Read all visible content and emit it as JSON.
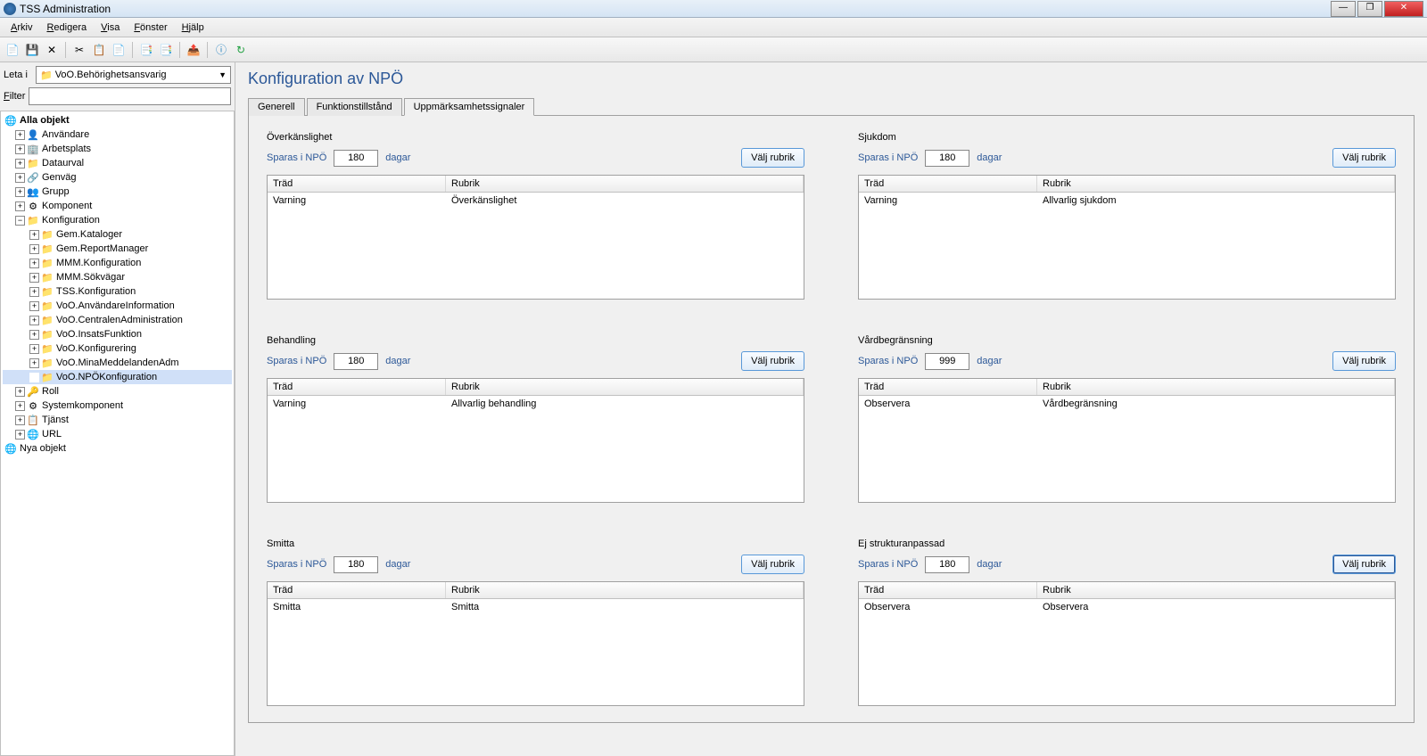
{
  "window": {
    "title": "TSS Administration"
  },
  "menu": {
    "arkiv": "Arkiv",
    "redigera": "Redigera",
    "visa": "Visa",
    "fonster": "Fönster",
    "hjalp": "Hjälp"
  },
  "search": {
    "leta_label": "Leta i",
    "combo_value": "VoO.Behörighetsansvarig",
    "filter_label": "Filter"
  },
  "tree": {
    "root": "Alla objekt",
    "items": [
      {
        "label": "Användare",
        "icon": "👤",
        "color": "#e07030"
      },
      {
        "label": "Arbetsplats",
        "icon": "🏢",
        "color": "#707090"
      },
      {
        "label": "Dataurval",
        "icon": "📁",
        "color": "#d0a040"
      },
      {
        "label": "Genväg",
        "icon": "🔗",
        "color": "#707090"
      },
      {
        "label": "Grupp",
        "icon": "👥",
        "color": "#d0a040"
      },
      {
        "label": "Komponent",
        "icon": "⚙",
        "color": "#707090"
      }
    ],
    "konfiguration": "Konfiguration",
    "konf_children": [
      "Gem.Kataloger",
      "Gem.ReportManager",
      "MMM.Konfiguration",
      "MMM.Sökvägar",
      "TSS.Konfiguration",
      "VoO.AnvändareInformation",
      "VoO.CentralenAdministration",
      "VoO.InsatsFunktion",
      "VoO.Konfigurering",
      "VoO.MinaMeddelandenAdm",
      "VoO.NPÖKonfiguration"
    ],
    "tail": [
      {
        "label": "Roll",
        "icon": "🔑"
      },
      {
        "label": "Systemkomponent",
        "icon": "⚙"
      },
      {
        "label": "Tjänst",
        "icon": "📋"
      },
      {
        "label": "URL",
        "icon": "🌐"
      }
    ],
    "nya": "Nya objekt"
  },
  "page": {
    "title": "Konfiguration av NPÖ"
  },
  "tabs": {
    "generell": "Generell",
    "funktion": "Funktionstillstånd",
    "uppmark": "Uppmärksamhetssignaler"
  },
  "common": {
    "sparas": "Sparas i NPÖ",
    "dagar": "dagar",
    "valj": "Välj rubrik",
    "trad": "Träd",
    "rubrik": "Rubrik"
  },
  "panels": [
    {
      "title": "Överkänslighet",
      "days": "180",
      "row": {
        "trad": "Varning",
        "rubrik": "Överkänslighet"
      }
    },
    {
      "title": "Sjukdom",
      "days": "180",
      "row": {
        "trad": "Varning",
        "rubrik": "Allvarlig sjukdom"
      }
    },
    {
      "title": "Behandling",
      "days": "180",
      "row": {
        "trad": "Varning",
        "rubrik": "Allvarlig behandling"
      }
    },
    {
      "title": "Vårdbegränsning",
      "days": "999",
      "row": {
        "trad": "Observera",
        "rubrik": "Vårdbegränsning"
      }
    },
    {
      "title": "Smitta",
      "days": "180",
      "row": {
        "trad": "Smitta",
        "rubrik": "Smitta"
      }
    },
    {
      "title": "Ej strukturanpassad",
      "days": "180",
      "row": {
        "trad": "Observera",
        "rubrik": "Observera"
      },
      "focus": true
    }
  ]
}
